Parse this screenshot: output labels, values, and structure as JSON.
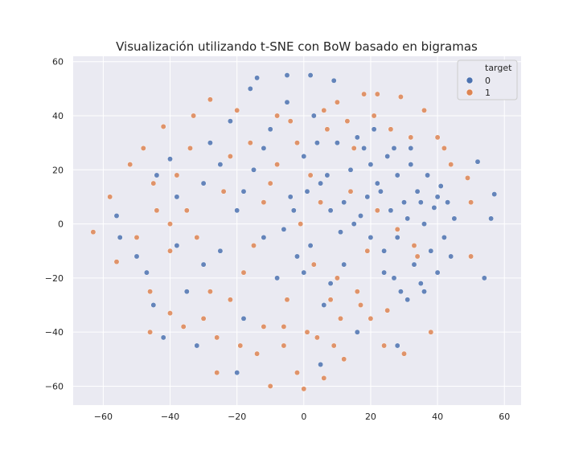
{
  "chart_data": {
    "type": "scatter",
    "title": "Visualización utilizando t-SNE  con BoW basado en bigramas",
    "xlabel": "",
    "ylabel": "",
    "xlim": [
      -69,
      65
    ],
    "ylim": [
      -67,
      62
    ],
    "xticks": [
      "−60",
      "−40",
      "−20",
      "0",
      "20",
      "40",
      "60"
    ],
    "xtick_values": [
      -60,
      -40,
      -20,
      0,
      20,
      40,
      60
    ],
    "yticks": [
      "−60",
      "−40",
      "−20",
      "0",
      "20",
      "40",
      "60"
    ],
    "ytick_values": [
      -60,
      -40,
      -20,
      0,
      20,
      40,
      60
    ],
    "grid": true,
    "background": "#eaeaf2",
    "legend": {
      "title": "target",
      "placement": "top-right",
      "entries": [
        "0",
        "1"
      ]
    },
    "series": [
      {
        "name": "0",
        "color": "#4c72b0",
        "points": [
          [
            -56,
            3
          ],
          [
            -55,
            -5
          ],
          [
            -50,
            -12
          ],
          [
            -47,
            -18
          ],
          [
            -45,
            -30
          ],
          [
            -42,
            -42
          ],
          [
            -40,
            24
          ],
          [
            -38,
            10
          ],
          [
            -35,
            -25
          ],
          [
            -32,
            -45
          ],
          [
            -30,
            15
          ],
          [
            -28,
            30
          ],
          [
            -25,
            -10
          ],
          [
            -22,
            38
          ],
          [
            -20,
            5
          ],
          [
            -18,
            -35
          ],
          [
            -16,
            50
          ],
          [
            -15,
            20
          ],
          [
            -12,
            -5
          ],
          [
            -10,
            35
          ],
          [
            -8,
            -20
          ],
          [
            -5,
            45
          ],
          [
            -4,
            10
          ],
          [
            -2,
            -12
          ],
          [
            0,
            25
          ],
          [
            2,
            -8
          ],
          [
            3,
            40
          ],
          [
            5,
            15
          ],
          [
            6,
            -30
          ],
          [
            8,
            5
          ],
          [
            9,
            53
          ],
          [
            10,
            30
          ],
          [
            12,
            -15
          ],
          [
            14,
            20
          ],
          [
            15,
            0
          ],
          [
            16,
            -40
          ],
          [
            18,
            28
          ],
          [
            19,
            10
          ],
          [
            20,
            -5
          ],
          [
            21,
            35
          ],
          [
            22,
            15
          ],
          [
            24,
            -10
          ],
          [
            25,
            25
          ],
          [
            26,
            5
          ],
          [
            27,
            -20
          ],
          [
            28,
            18
          ],
          [
            29,
            -25
          ],
          [
            30,
            8
          ],
          [
            31,
            -28
          ],
          [
            32,
            22
          ],
          [
            33,
            -15
          ],
          [
            34,
            12
          ],
          [
            35,
            -22
          ],
          [
            36,
            0
          ],
          [
            37,
            18
          ],
          [
            38,
            -10
          ],
          [
            39,
            6
          ],
          [
            40,
            -18
          ],
          [
            41,
            14
          ],
          [
            42,
            -5
          ],
          [
            43,
            8
          ],
          [
            44,
            -12
          ],
          [
            45,
            2
          ],
          [
            52,
            23
          ],
          [
            56,
            2
          ],
          [
            57,
            11
          ],
          [
            54,
            -20
          ],
          [
            -44,
            18
          ],
          [
            -38,
            -8
          ],
          [
            -30,
            -15
          ],
          [
            -25,
            22
          ],
          [
            -18,
            12
          ],
          [
            -12,
            28
          ],
          [
            -6,
            -2
          ],
          [
            0,
            -18
          ],
          [
            4,
            30
          ],
          [
            8,
            -22
          ],
          [
            12,
            8
          ],
          [
            16,
            32
          ],
          [
            20,
            22
          ],
          [
            24,
            -18
          ],
          [
            28,
            -5
          ],
          [
            32,
            28
          ],
          [
            36,
            -25
          ],
          [
            40,
            10
          ],
          [
            -14,
            54
          ],
          [
            -5,
            55
          ],
          [
            2,
            55
          ],
          [
            -20,
            -55
          ],
          [
            5,
            -52
          ],
          [
            28,
            -45
          ],
          [
            -3,
            5
          ],
          [
            1,
            12
          ],
          [
            7,
            18
          ],
          [
            11,
            -3
          ],
          [
            17,
            3
          ],
          [
            23,
            12
          ],
          [
            27,
            28
          ],
          [
            31,
            2
          ],
          [
            35,
            8
          ]
        ]
      },
      {
        "name": "1",
        "color": "#dd8452",
        "points": [
          [
            -63,
            -3
          ],
          [
            -58,
            10
          ],
          [
            -56,
            -14
          ],
          [
            -52,
            22
          ],
          [
            -50,
            -5
          ],
          [
            -48,
            28
          ],
          [
            -46,
            -25
          ],
          [
            -44,
            5
          ],
          [
            -42,
            36
          ],
          [
            -40,
            -33
          ],
          [
            -38,
            18
          ],
          [
            -36,
            -38
          ],
          [
            -34,
            28
          ],
          [
            -32,
            -5
          ],
          [
            -30,
            -35
          ],
          [
            -28,
            46
          ],
          [
            -26,
            -42
          ],
          [
            -24,
            12
          ],
          [
            -22,
            -28
          ],
          [
            -20,
            42
          ],
          [
            -18,
            -18
          ],
          [
            -16,
            30
          ],
          [
            -14,
            -48
          ],
          [
            -12,
            8
          ],
          [
            -10,
            -60
          ],
          [
            -8,
            22
          ],
          [
            -6,
            -38
          ],
          [
            -4,
            38
          ],
          [
            -2,
            -55
          ],
          [
            -1,
            0
          ],
          [
            0,
            -61
          ],
          [
            2,
            18
          ],
          [
            4,
            -42
          ],
          [
            6,
            -57
          ],
          [
            8,
            -28
          ],
          [
            10,
            45
          ],
          [
            12,
            -50
          ],
          [
            14,
            12
          ],
          [
            16,
            -25
          ],
          [
            18,
            48
          ],
          [
            20,
            -35
          ],
          [
            22,
            5
          ],
          [
            24,
            -45
          ],
          [
            26,
            35
          ],
          [
            28,
            -2
          ],
          [
            30,
            -48
          ],
          [
            32,
            32
          ],
          [
            34,
            -12
          ],
          [
            36,
            42
          ],
          [
            38,
            -40
          ],
          [
            40,
            32
          ],
          [
            42,
            28
          ],
          [
            44,
            22
          ],
          [
            49,
            17
          ],
          [
            50,
            8
          ],
          [
            50,
            -12
          ],
          [
            -45,
            15
          ],
          [
            -40,
            -10
          ],
          [
            -35,
            5
          ],
          [
            -28,
            -25
          ],
          [
            -22,
            25
          ],
          [
            -15,
            -8
          ],
          [
            -8,
            40
          ],
          [
            -2,
            30
          ],
          [
            3,
            -15
          ],
          [
            7,
            35
          ],
          [
            11,
            -35
          ],
          [
            15,
            28
          ],
          [
            19,
            -10
          ],
          [
            22,
            48
          ],
          [
            -10,
            15
          ],
          [
            -5,
            -28
          ],
          [
            5,
            8
          ],
          [
            9,
            -45
          ],
          [
            13,
            38
          ],
          [
            17,
            -30
          ],
          [
            21,
            40
          ],
          [
            25,
            -32
          ],
          [
            29,
            47
          ],
          [
            33,
            -8
          ],
          [
            -46,
            -40
          ],
          [
            -40,
            0
          ],
          [
            -33,
            40
          ],
          [
            -26,
            -55
          ],
          [
            -19,
            -45
          ],
          [
            -12,
            -38
          ],
          [
            -6,
            -45
          ],
          [
            1,
            -40
          ],
          [
            6,
            42
          ],
          [
            10,
            -20
          ]
        ]
      }
    ]
  }
}
